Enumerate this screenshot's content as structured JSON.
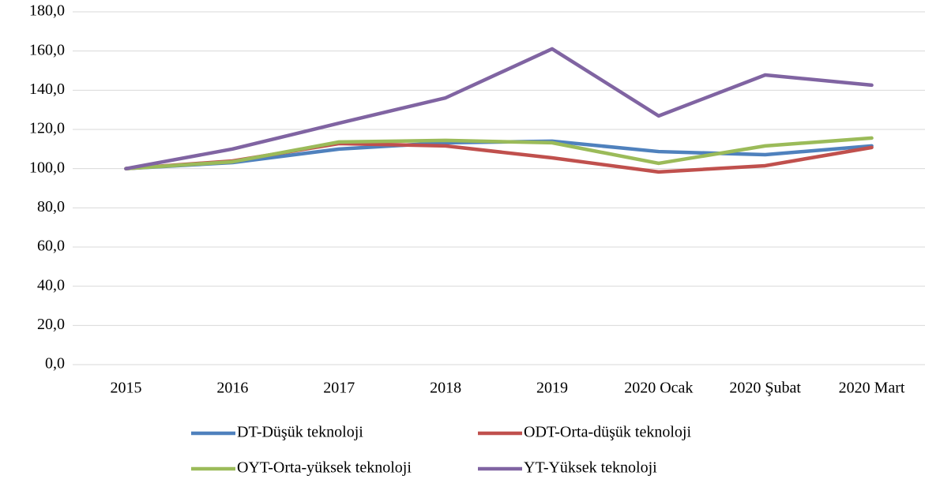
{
  "chart_data": {
    "type": "line",
    "categories": [
      "2015",
      "2016",
      "2017",
      "2018",
      "2019",
      "2020 Ocak",
      "2020 Şubat",
      "2020 Mart"
    ],
    "series": [
      {
        "name": "DT-Düşük teknoloji",
        "color": "#4f81bd",
        "values": [
          100,
          103.1,
          110.0,
          113.2,
          114.0,
          108.7,
          107.1,
          111.6
        ]
      },
      {
        "name": "ODT-Orta-düşük teknoloji",
        "color": "#c0504d",
        "values": [
          100,
          103.9,
          112.8,
          111.6,
          105.5,
          98.3,
          101.5,
          110.8
        ]
      },
      {
        "name": "OYT-Orta-yüksek teknoloji",
        "color": "#9bbb59",
        "values": [
          100,
          103.5,
          113.6,
          114.4,
          113.2,
          102.7,
          111.6,
          115.6
        ]
      },
      {
        "name": "YT-Yüksek teknoloji",
        "color": "#8064a2",
        "values": [
          100,
          110.0,
          123.2,
          136.1,
          161.1,
          126.9,
          147.8,
          142.6
        ]
      }
    ],
    "ylim": [
      0,
      180
    ],
    "yticks": [
      {
        "value": 0,
        "label": "0,0"
      },
      {
        "value": 20,
        "label": "20,0"
      },
      {
        "value": 40,
        "label": "40,0"
      },
      {
        "value": 60,
        "label": "60,0"
      },
      {
        "value": 80,
        "label": "80,0"
      },
      {
        "value": 100,
        "label": "100,0"
      },
      {
        "value": 120,
        "label": "120,0"
      },
      {
        "value": 140,
        "label": "140,0"
      },
      {
        "value": 160,
        "label": "160,0"
      },
      {
        "value": 180,
        "label": "180,0"
      }
    ],
    "grid": true,
    "legend": "bottom"
  }
}
